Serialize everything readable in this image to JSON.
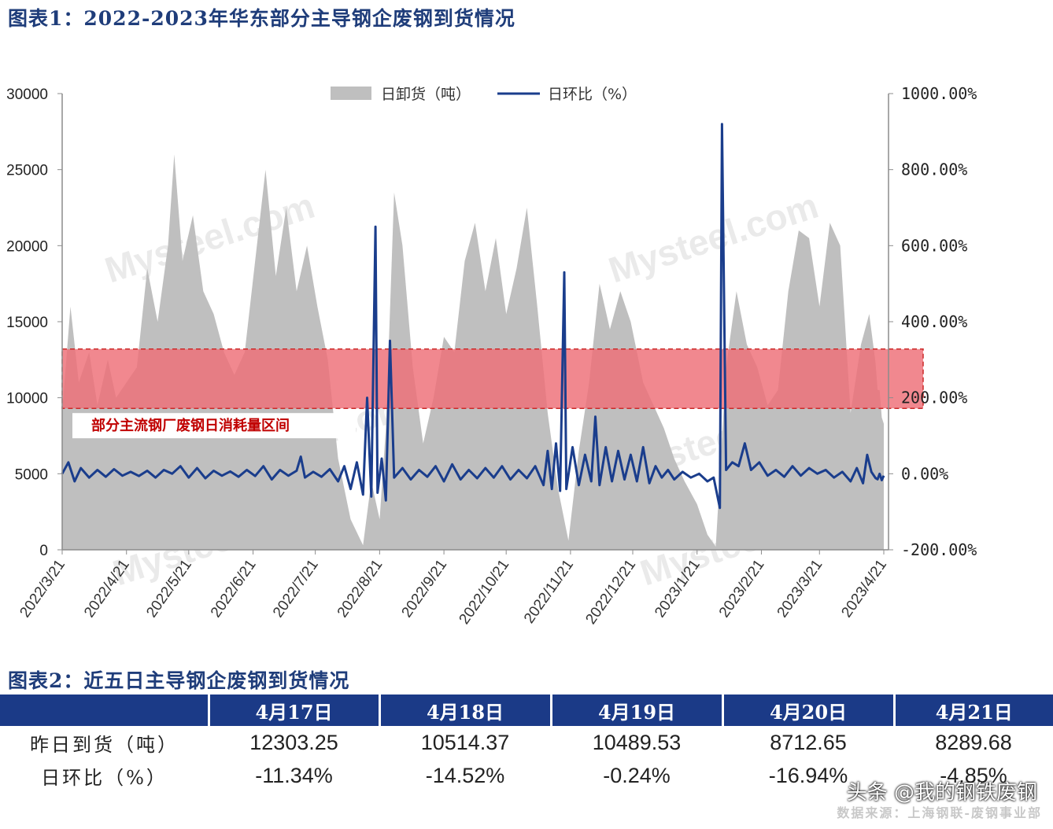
{
  "title1": "图表1：2022-2023年华东部分主导钢企废钢到货情况",
  "title2": "图表2：近五日主导钢企废钢到货情况",
  "legend": {
    "area": "日卸货（吨）",
    "line": "日环比（%）"
  },
  "band_label": "部分主流钢厂废钢日消耗量区间",
  "watermark": "Mysteel.com",
  "source": "数据来源：上海钢联-废钢事业部",
  "logo_watermark": "头条 @我的钢铁废钢",
  "colors": {
    "area": "#bfbfbf",
    "line": "#1a3d8c",
    "band": "#ee6e76",
    "band_border": "#cc2a2a",
    "header": "#1b3a87",
    "title": "#1f3d7a"
  },
  "chart_data": {
    "type": "area+line",
    "y_left": {
      "min": 0,
      "max": 30000,
      "ticks": [
        "0",
        "5000",
        "10000",
        "15000",
        "20000",
        "25000",
        "30000"
      ]
    },
    "y_right": {
      "min": -200,
      "max": 1000,
      "ticks": [
        "-200.00%",
        "0.00%",
        "200.00%",
        "400.00%",
        "600.00%",
        "800.00%",
        "1000.00%"
      ]
    },
    "x_ticks": [
      "2022/3/21",
      "2022/4/21",
      "2022/5/21",
      "2022/6/21",
      "2022/7/21",
      "2022/8/21",
      "2022/9/21",
      "2022/10/21",
      "2022/11/21",
      "2022/12/21",
      "2023/1/21",
      "2023/2/21",
      "2023/3/21",
      "2023/4/21"
    ],
    "band_left": [
      9300,
      13200
    ],
    "area_series": {
      "name": "日卸货（吨）",
      "points": [
        [
          "2022-03-21",
          9000
        ],
        [
          "2022-03-25",
          16000
        ],
        [
          "2022-03-29",
          11000
        ],
        [
          "2022-04-03",
          13000
        ],
        [
          "2022-04-07",
          9500
        ],
        [
          "2022-04-12",
          12500
        ],
        [
          "2022-04-16",
          10000
        ],
        [
          "2022-04-21",
          11000
        ],
        [
          "2022-04-26",
          12000
        ],
        [
          "2022-05-01",
          18500
        ],
        [
          "2022-05-06",
          15000
        ],
        [
          "2022-05-11",
          20000
        ],
        [
          "2022-05-14",
          26000
        ],
        [
          "2022-05-18",
          19000
        ],
        [
          "2022-05-23",
          22000
        ],
        [
          "2022-05-28",
          17000
        ],
        [
          "2022-06-02",
          15500
        ],
        [
          "2022-06-07",
          13000
        ],
        [
          "2022-06-12",
          11500
        ],
        [
          "2022-06-17",
          13000
        ],
        [
          "2022-06-22",
          19000
        ],
        [
          "2022-06-27",
          25000
        ],
        [
          "2022-07-02",
          18000
        ],
        [
          "2022-07-07",
          22500
        ],
        [
          "2022-07-12",
          17000
        ],
        [
          "2022-07-17",
          20000
        ],
        [
          "2022-07-22",
          16000
        ],
        [
          "2022-07-27",
          12500
        ],
        [
          "2022-08-01",
          6000
        ],
        [
          "2022-08-07",
          2000
        ],
        [
          "2022-08-13",
          300
        ],
        [
          "2022-08-17",
          4500
        ],
        [
          "2022-08-21",
          2000
        ],
        [
          "2022-08-24",
          8000
        ],
        [
          "2022-08-28",
          23500
        ],
        [
          "2022-09-01",
          20000
        ],
        [
          "2022-09-06",
          12000
        ],
        [
          "2022-09-11",
          7000
        ],
        [
          "2022-09-16",
          10000
        ],
        [
          "2022-09-21",
          14000
        ],
        [
          "2022-09-26",
          13000
        ],
        [
          "2022-10-01",
          19000
        ],
        [
          "2022-10-06",
          21500
        ],
        [
          "2022-10-11",
          17000
        ],
        [
          "2022-10-16",
          20500
        ],
        [
          "2022-10-21",
          15500
        ],
        [
          "2022-10-26",
          18500
        ],
        [
          "2022-10-31",
          22500
        ],
        [
          "2022-11-05",
          16000
        ],
        [
          "2022-11-10",
          9000
        ],
        [
          "2022-11-15",
          4000
        ],
        [
          "2022-11-20",
          600
        ],
        [
          "2022-11-25",
          6500
        ],
        [
          "2022-11-30",
          11000
        ],
        [
          "2022-12-05",
          17500
        ],
        [
          "2022-12-10",
          14500
        ],
        [
          "2022-12-15",
          17000
        ],
        [
          "2022-12-20",
          15000
        ],
        [
          "2022-12-26",
          11000
        ],
        [
          "2022-12-31",
          9500
        ],
        [
          "2023-01-05",
          8000
        ],
        [
          "2023-01-10",
          6000
        ],
        [
          "2023-01-15",
          4500
        ],
        [
          "2023-01-21",
          3000
        ],
        [
          "2023-01-26",
          1000
        ],
        [
          "2023-01-30",
          200
        ],
        [
          "2023-02-04",
          12000
        ],
        [
          "2023-02-09",
          17000
        ],
        [
          "2023-02-14",
          13500
        ],
        [
          "2023-02-19",
          12000
        ],
        [
          "2023-02-24",
          9500
        ],
        [
          "2023-03-01",
          10500
        ],
        [
          "2023-03-06",
          17000
        ],
        [
          "2023-03-11",
          21000
        ],
        [
          "2023-03-16",
          20500
        ],
        [
          "2023-03-21",
          16000
        ],
        [
          "2023-03-26",
          21500
        ],
        [
          "2023-03-31",
          20000
        ],
        [
          "2023-04-05",
          9000
        ],
        [
          "2023-04-10",
          13500
        ],
        [
          "2023-04-14",
          15500
        ],
        [
          "2023-04-17",
          12303.25
        ],
        [
          "2023-04-18",
          10514.37
        ],
        [
          "2023-04-19",
          10489.53
        ],
        [
          "2023-04-20",
          8712.65
        ],
        [
          "2023-04-21",
          8289.68
        ]
      ]
    },
    "line_series": {
      "name": "日环比（%）",
      "points": [
        [
          "2022-03-21",
          0
        ],
        [
          "2022-03-24",
          30
        ],
        [
          "2022-03-27",
          -20
        ],
        [
          "2022-03-30",
          15
        ],
        [
          "2022-04-03",
          -10
        ],
        [
          "2022-04-07",
          10
        ],
        [
          "2022-04-11",
          -8
        ],
        [
          "2022-04-15",
          12
        ],
        [
          "2022-04-19",
          -5
        ],
        [
          "2022-04-23",
          5
        ],
        [
          "2022-04-27",
          -6
        ],
        [
          "2022-05-01",
          8
        ],
        [
          "2022-05-05",
          -10
        ],
        [
          "2022-05-09",
          10
        ],
        [
          "2022-05-13",
          0
        ],
        [
          "2022-05-17",
          20
        ],
        [
          "2022-05-21",
          -10
        ],
        [
          "2022-05-25",
          15
        ],
        [
          "2022-05-29",
          -12
        ],
        [
          "2022-06-02",
          8
        ],
        [
          "2022-06-06",
          -5
        ],
        [
          "2022-06-10",
          6
        ],
        [
          "2022-06-14",
          -8
        ],
        [
          "2022-06-18",
          10
        ],
        [
          "2022-06-22",
          -6
        ],
        [
          "2022-06-26",
          20
        ],
        [
          "2022-06-30",
          -15
        ],
        [
          "2022-07-04",
          10
        ],
        [
          "2022-07-08",
          -5
        ],
        [
          "2022-07-12",
          8
        ],
        [
          "2022-07-14",
          45
        ],
        [
          "2022-07-16",
          -10
        ],
        [
          "2022-07-20",
          5
        ],
        [
          "2022-07-24",
          -8
        ],
        [
          "2022-07-28",
          12
        ],
        [
          "2022-08-01",
          -20
        ],
        [
          "2022-08-04",
          20
        ],
        [
          "2022-08-07",
          -40
        ],
        [
          "2022-08-10",
          30
        ],
        [
          "2022-08-13",
          -55
        ],
        [
          "2022-08-15",
          200
        ],
        [
          "2022-08-17",
          -60
        ],
        [
          "2022-08-19",
          650
        ],
        [
          "2022-08-20",
          -50
        ],
        [
          "2022-08-22",
          40
        ],
        [
          "2022-08-24",
          -70
        ],
        [
          "2022-08-26",
          350
        ],
        [
          "2022-08-28",
          -10
        ],
        [
          "2022-09-01",
          15
        ],
        [
          "2022-09-05",
          -15
        ],
        [
          "2022-09-09",
          10
        ],
        [
          "2022-09-13",
          -8
        ],
        [
          "2022-09-17",
          20
        ],
        [
          "2022-09-21",
          -20
        ],
        [
          "2022-09-25",
          25
        ],
        [
          "2022-09-29",
          -15
        ],
        [
          "2022-10-03",
          10
        ],
        [
          "2022-10-07",
          -12
        ],
        [
          "2022-10-11",
          15
        ],
        [
          "2022-10-15",
          -10
        ],
        [
          "2022-10-19",
          20
        ],
        [
          "2022-10-23",
          -15
        ],
        [
          "2022-10-27",
          10
        ],
        [
          "2022-10-31",
          -12
        ],
        [
          "2022-11-04",
          20
        ],
        [
          "2022-11-08",
          -30
        ],
        [
          "2022-11-10",
          60
        ],
        [
          "2022-11-12",
          -40
        ],
        [
          "2022-11-14",
          80
        ],
        [
          "2022-11-16",
          -45
        ],
        [
          "2022-11-18",
          530
        ],
        [
          "2022-11-19",
          -40
        ],
        [
          "2022-11-22",
          70
        ],
        [
          "2022-11-25",
          -30
        ],
        [
          "2022-11-28",
          50
        ],
        [
          "2022-12-01",
          -20
        ],
        [
          "2022-12-03",
          150
        ],
        [
          "2022-12-05",
          -30
        ],
        [
          "2022-12-08",
          70
        ],
        [
          "2022-12-11",
          -20
        ],
        [
          "2022-12-14",
          60
        ],
        [
          "2022-12-17",
          -15
        ],
        [
          "2022-12-20",
          50
        ],
        [
          "2022-12-23",
          -20
        ],
        [
          "2022-12-26",
          70
        ],
        [
          "2022-12-29",
          -25
        ],
        [
          "2023-01-01",
          20
        ],
        [
          "2023-01-04",
          -10
        ],
        [
          "2023-01-07",
          10
        ],
        [
          "2023-01-10",
          -15
        ],
        [
          "2023-01-14",
          5
        ],
        [
          "2023-01-18",
          -10
        ],
        [
          "2023-01-22",
          0
        ],
        [
          "2023-01-26",
          -20
        ],
        [
          "2023-01-29",
          -10
        ],
        [
          "2023-02-01",
          -90
        ],
        [
          "2023-02-02",
          920
        ],
        [
          "2023-02-04",
          10
        ],
        [
          "2023-02-07",
          30
        ],
        [
          "2023-02-10",
          20
        ],
        [
          "2023-02-13",
          80
        ],
        [
          "2023-02-16",
          10
        ],
        [
          "2023-02-20",
          30
        ],
        [
          "2023-02-24",
          -5
        ],
        [
          "2023-02-28",
          10
        ],
        [
          "2023-03-04",
          -8
        ],
        [
          "2023-03-08",
          20
        ],
        [
          "2023-03-12",
          -5
        ],
        [
          "2023-03-16",
          15
        ],
        [
          "2023-03-20",
          0
        ],
        [
          "2023-03-24",
          10
        ],
        [
          "2023-03-28",
          -10
        ],
        [
          "2023-04-01",
          5
        ],
        [
          "2023-04-05",
          -20
        ],
        [
          "2023-04-08",
          15
        ],
        [
          "2023-04-11",
          -25
        ],
        [
          "2023-04-13",
          50
        ],
        [
          "2023-04-15",
          5
        ],
        [
          "2023-04-17",
          -11.34
        ],
        [
          "2023-04-18",
          -14.52
        ],
        [
          "2023-04-19",
          -0.24
        ],
        [
          "2023-04-20",
          -16.94
        ],
        [
          "2023-04-21",
          -4.85
        ]
      ]
    }
  },
  "table": {
    "headers": [
      "",
      "4月17日",
      "4月18日",
      "4月19日",
      "4月20日",
      "4月21日"
    ],
    "rows": [
      {
        "label": "昨日到货（吨）",
        "values": [
          "12303.25",
          "10514.37",
          "10489.53",
          "8712.65",
          "8289.68"
        ]
      },
      {
        "label": "日环比（%）",
        "values": [
          "-11.34%",
          "-14.52%",
          "-0.24%",
          "-16.94%",
          "-4.85%"
        ]
      }
    ]
  }
}
